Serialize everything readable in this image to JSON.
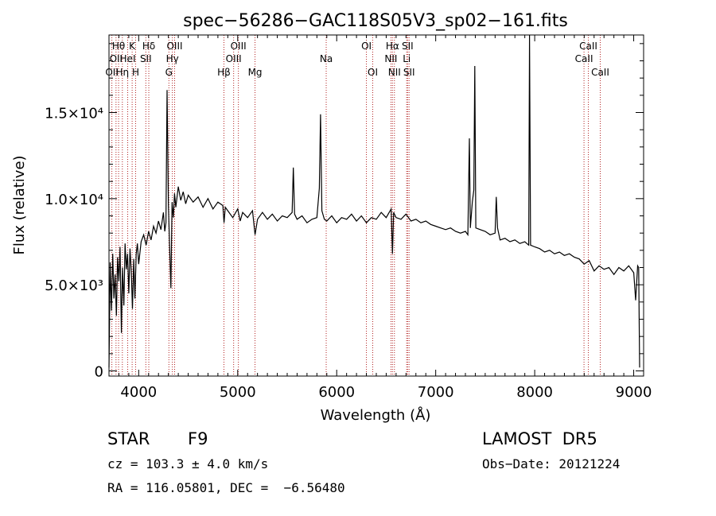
{
  "chart_data": {
    "type": "line",
    "title": "spec−56286−GAC118S05V3_sp02−161.fits",
    "xlabel": "Wavelength (Å)",
    "ylabel": "Flux (relative)",
    "xlim": [
      3700,
      9100
    ],
    "ylim": [
      -300,
      19500
    ],
    "x_ticks": [
      {
        "value": 4000,
        "label": "4000"
      },
      {
        "value": 5000,
        "label": "5000"
      },
      {
        "value": 6000,
        "label": "6000"
      },
      {
        "value": 7000,
        "label": "7000"
      },
      {
        "value": 8000,
        "label": "8000"
      },
      {
        "value": 9000,
        "label": "9000"
      }
    ],
    "y_ticks": [
      {
        "value": 0,
        "label": "0"
      },
      {
        "value": 5000,
        "label": "5.0×10³"
      },
      {
        "value": 10000,
        "label": "1.0×10⁴"
      },
      {
        "value": 15000,
        "label": "1.5×10⁴"
      }
    ],
    "line_color": "#000000",
    "marker_color": "#b22222",
    "spectrum": [
      [
        3700,
        200
      ],
      [
        3712,
        6300
      ],
      [
        3725,
        3500
      ],
      [
        3738,
        6800
      ],
      [
        3750,
        4200
      ],
      [
        3762,
        5600
      ],
      [
        3775,
        3200
      ],
      [
        3787,
        6600
      ],
      [
        3800,
        5200
      ],
      [
        3812,
        7200
      ],
      [
        3825,
        2200
      ],
      [
        3837,
        6000
      ],
      [
        3850,
        3800
      ],
      [
        3862,
        7400
      ],
      [
        3875,
        5900
      ],
      [
        3887,
        6800
      ],
      [
        3900,
        4500
      ],
      [
        3912,
        7100
      ],
      [
        3925,
        5800
      ],
      [
        3937,
        3600
      ],
      [
        3950,
        6500
      ],
      [
        3962,
        4200
      ],
      [
        3975,
        6800
      ],
      [
        3987,
        7400
      ],
      [
        4000,
        6200
      ],
      [
        4025,
        7500
      ],
      [
        4050,
        7900
      ],
      [
        4075,
        7300
      ],
      [
        4100,
        8100
      ],
      [
        4125,
        7600
      ],
      [
        4150,
        8400
      ],
      [
        4175,
        8000
      ],
      [
        4200,
        8700
      ],
      [
        4225,
        8200
      ],
      [
        4250,
        9200
      ],
      [
        4263,
        8100
      ],
      [
        4275,
        8600
      ],
      [
        4287,
        16300
      ],
      [
        4300,
        9600
      ],
      [
        4312,
        7200
      ],
      [
        4325,
        4800
      ],
      [
        4337,
        9800
      ],
      [
        4350,
        8900
      ],
      [
        4362,
        10300
      ],
      [
        4375,
        9500
      ],
      [
        4400,
        10700
      ],
      [
        4425,
        9900
      ],
      [
        4450,
        10400
      ],
      [
        4475,
        9700
      ],
      [
        4500,
        10200
      ],
      [
        4550,
        9800
      ],
      [
        4600,
        10100
      ],
      [
        4650,
        9500
      ],
      [
        4700,
        10000
      ],
      [
        4750,
        9400
      ],
      [
        4800,
        9800
      ],
      [
        4850,
        9600
      ],
      [
        4862,
        8600
      ],
      [
        4875,
        9500
      ],
      [
        4900,
        9300
      ],
      [
        4950,
        8900
      ],
      [
        5000,
        9400
      ],
      [
        5025,
        8700
      ],
      [
        5050,
        9200
      ],
      [
        5100,
        8900
      ],
      [
        5150,
        9300
      ],
      [
        5175,
        7900
      ],
      [
        5200,
        8800
      ],
      [
        5250,
        9200
      ],
      [
        5300,
        8800
      ],
      [
        5350,
        9100
      ],
      [
        5400,
        8700
      ],
      [
        5450,
        9000
      ],
      [
        5500,
        8900
      ],
      [
        5550,
        9200
      ],
      [
        5562,
        11800
      ],
      [
        5575,
        9100
      ],
      [
        5600,
        8800
      ],
      [
        5650,
        9000
      ],
      [
        5700,
        8600
      ],
      [
        5750,
        8800
      ],
      [
        5800,
        8900
      ],
      [
        5825,
        10600
      ],
      [
        5837,
        14900
      ],
      [
        5850,
        9300
      ],
      [
        5875,
        8800
      ],
      [
        5900,
        8700
      ],
      [
        5950,
        9000
      ],
      [
        6000,
        8600
      ],
      [
        6050,
        8900
      ],
      [
        6100,
        8800
      ],
      [
        6150,
        9100
      ],
      [
        6200,
        8700
      ],
      [
        6250,
        9000
      ],
      [
        6300,
        8600
      ],
      [
        6350,
        8900
      ],
      [
        6400,
        8800
      ],
      [
        6450,
        9200
      ],
      [
        6500,
        8900
      ],
      [
        6550,
        9400
      ],
      [
        6563,
        6800
      ],
      [
        6575,
        9200
      ],
      [
        6600,
        8900
      ],
      [
        6650,
        8800
      ],
      [
        6700,
        9100
      ],
      [
        6750,
        8700
      ],
      [
        6800,
        8800
      ],
      [
        6850,
        8600
      ],
      [
        6900,
        8700
      ],
      [
        6950,
        8500
      ],
      [
        7000,
        8400
      ],
      [
        7050,
        8300
      ],
      [
        7100,
        8200
      ],
      [
        7150,
        8300
      ],
      [
        7200,
        8100
      ],
      [
        7250,
        8000
      ],
      [
        7300,
        8100
      ],
      [
        7325,
        7900
      ],
      [
        7340,
        13500
      ],
      [
        7350,
        8300
      ],
      [
        7370,
        9800
      ],
      [
        7385,
        10500
      ],
      [
        7395,
        17700
      ],
      [
        7405,
        8300
      ],
      [
        7450,
        8200
      ],
      [
        7500,
        8100
      ],
      [
        7550,
        7900
      ],
      [
        7600,
        8000
      ],
      [
        7612,
        10100
      ],
      [
        7625,
        8300
      ],
      [
        7650,
        7600
      ],
      [
        7700,
        7700
      ],
      [
        7750,
        7500
      ],
      [
        7800,
        7600
      ],
      [
        7850,
        7400
      ],
      [
        7900,
        7500
      ],
      [
        7940,
        7300
      ],
      [
        7948,
        19500
      ],
      [
        7958,
        7300
      ],
      [
        8000,
        7200
      ],
      [
        8050,
        7100
      ],
      [
        8100,
        6900
      ],
      [
        8150,
        7000
      ],
      [
        8200,
        6800
      ],
      [
        8250,
        6900
      ],
      [
        8300,
        6700
      ],
      [
        8350,
        6800
      ],
      [
        8400,
        6600
      ],
      [
        8450,
        6500
      ],
      [
        8500,
        6200
      ],
      [
        8550,
        6400
      ],
      [
        8600,
        5800
      ],
      [
        8650,
        6100
      ],
      [
        8700,
        5900
      ],
      [
        8750,
        6000
      ],
      [
        8800,
        5600
      ],
      [
        8850,
        6000
      ],
      [
        8900,
        5800
      ],
      [
        8950,
        6100
      ],
      [
        9000,
        5700
      ],
      [
        9020,
        4100
      ],
      [
        9040,
        6100
      ],
      [
        9050,
        6000
      ],
      [
        9060,
        200
      ]
    ],
    "lines": [
      {
        "wl": 3729,
        "label": "OII",
        "row": 2
      },
      {
        "wl": 3771,
        "label": "OII",
        "row": 1
      },
      {
        "wl": 3797,
        "label": "Hθ",
        "row": 0
      },
      {
        "wl": 3835,
        "label": "Hη",
        "row": 2
      },
      {
        "wl": 3889,
        "label": "HeI",
        "row": 1
      },
      {
        "wl": 3934,
        "label": "K",
        "row": 0
      },
      {
        "wl": 3969,
        "label": "H",
        "row": 2
      },
      {
        "wl": 4072,
        "label": "SII",
        "row": 1
      },
      {
        "wl": 4102,
        "label": "Hδ",
        "row": 0
      },
      {
        "wl": 4305,
        "label": "G",
        "row": 2
      },
      {
        "wl": 4340,
        "label": "Hγ",
        "row": 1
      },
      {
        "wl": 4363,
        "label": "OIII",
        "row": 0
      },
      {
        "wl": 4861,
        "label": "Hβ",
        "row": 2
      },
      {
        "wl": 4959,
        "label": "OIII",
        "row": 1
      },
      {
        "wl": 5007,
        "label": "OIII",
        "row": 0
      },
      {
        "wl": 5175,
        "label": "Mg",
        "row": 2
      },
      {
        "wl": 5894,
        "label": "Na",
        "row": 1
      },
      {
        "wl": 6300,
        "label": "OI",
        "row": 0
      },
      {
        "wl": 6364,
        "label": "OI",
        "row": 2
      },
      {
        "wl": 6548,
        "label": "NII",
        "row": 1
      },
      {
        "wl": 6563,
        "label": "Hα",
        "row": 0
      },
      {
        "wl": 6583,
        "label": "NII",
        "row": 2
      },
      {
        "wl": 6707,
        "label": "Li",
        "row": 1
      },
      {
        "wl": 6716,
        "label": "SII",
        "row": 0
      },
      {
        "wl": 6731,
        "label": "SII",
        "row": 2
      },
      {
        "wl": 8498,
        "label": "CaII",
        "row": 1
      },
      {
        "wl": 8542,
        "label": "CaII",
        "row": 0
      },
      {
        "wl": 8662,
        "label": "CaII",
        "row": 2
      }
    ]
  },
  "info": {
    "object_class": "STAR",
    "subclass": "F9",
    "survey": "LAMOST  DR5",
    "cz": "cz = 103.3 ± 4.0 km/s",
    "obs_date": "Obs−Date: 20121224",
    "coords": "RA = 116.05801, DEC =  −6.56480"
  }
}
